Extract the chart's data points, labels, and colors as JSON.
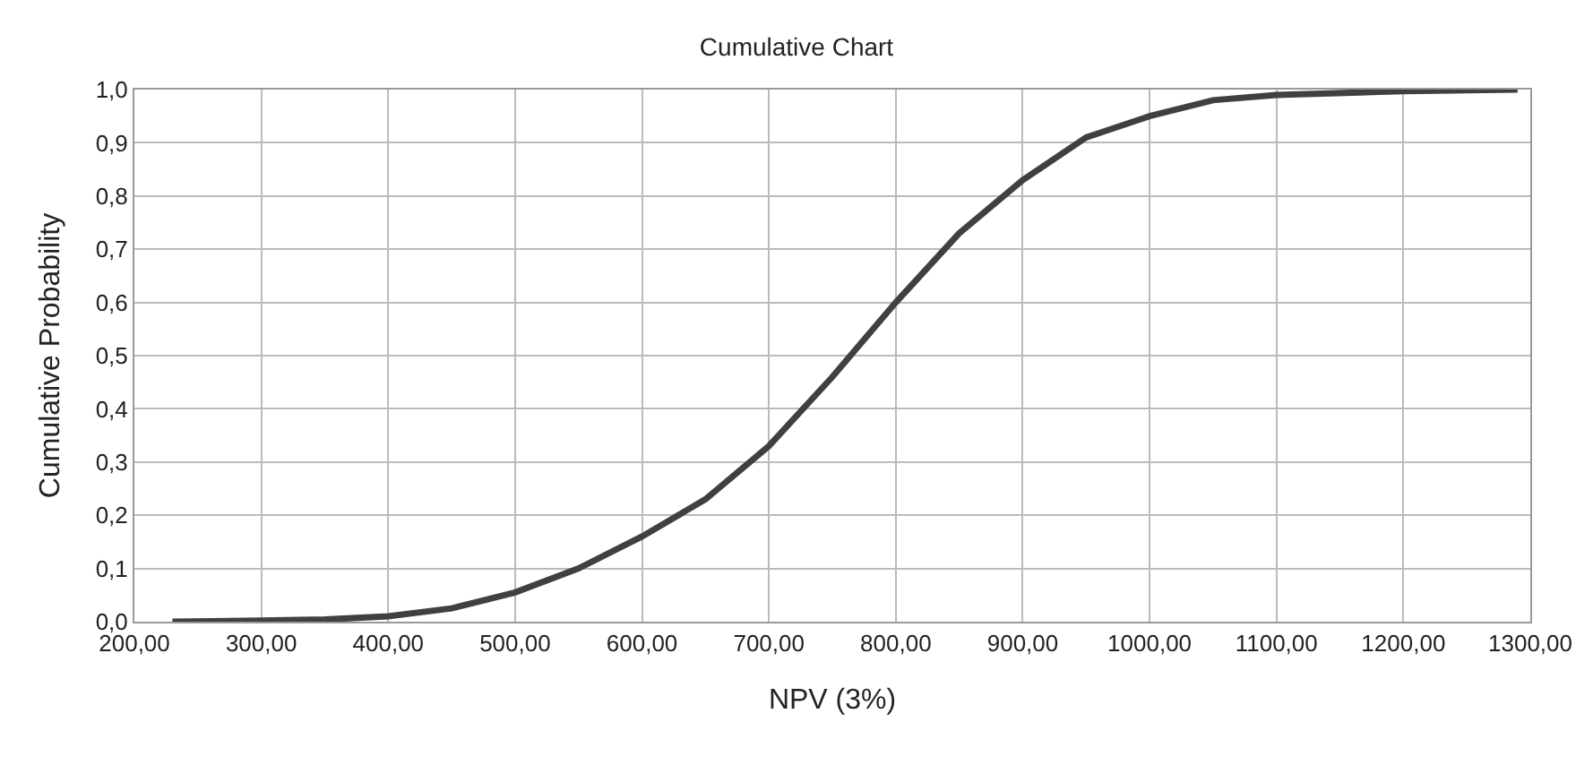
{
  "chart_data": {
    "type": "line",
    "title": "Cumulative Chart",
    "xlabel": "NPV (3%)",
    "ylabel": "Cumulative Probability",
    "x": [
      230,
      300,
      350,
      400,
      450,
      500,
      550,
      600,
      650,
      700,
      750,
      800,
      850,
      900,
      950,
      1000,
      1050,
      1100,
      1200,
      1290
    ],
    "series": [
      {
        "color": "#404040",
        "values": [
          0,
          0.002,
          0.004,
          0.01,
          0.025,
          0.055,
          0.1,
          0.16,
          0.23,
          0.33,
          0.46,
          0.6,
          0.73,
          0.83,
          0.91,
          0.95,
          0.98,
          0.99,
          0.997,
          1.0
        ]
      }
    ],
    "xlim": [
      200,
      1300
    ],
    "ylim": [
      0,
      1
    ],
    "xticks": [
      {
        "value": 200,
        "label": "200,00"
      },
      {
        "value": 300,
        "label": "300,00"
      },
      {
        "value": 400,
        "label": "400,00"
      },
      {
        "value": 500,
        "label": "500,00"
      },
      {
        "value": 600,
        "label": "600,00"
      },
      {
        "value": 700,
        "label": "700,00"
      },
      {
        "value": 800,
        "label": "800,00"
      },
      {
        "value": 900,
        "label": "900,00"
      },
      {
        "value": 1000,
        "label": "1000,00"
      },
      {
        "value": 1100,
        "label": "1100,00"
      },
      {
        "value": 1200,
        "label": "1200,00"
      },
      {
        "value": 1300,
        "label": "1300,00"
      }
    ],
    "yticks": [
      {
        "value": 0,
        "label": "0,0"
      },
      {
        "value": 0.1,
        "label": "0,1"
      },
      {
        "value": 0.2,
        "label": "0,2"
      },
      {
        "value": 0.3,
        "label": "0,3"
      },
      {
        "value": 0.4,
        "label": "0,4"
      },
      {
        "value": 0.5,
        "label": "0,5"
      },
      {
        "value": 0.6,
        "label": "0,6"
      },
      {
        "value": 0.7,
        "label": "0,7"
      },
      {
        "value": 0.8,
        "label": "0,8"
      },
      {
        "value": 0.9,
        "label": "0,9"
      },
      {
        "value": 1,
        "label": "1,0"
      }
    ],
    "grid": true,
    "marker": "none",
    "line_style": "solid"
  }
}
